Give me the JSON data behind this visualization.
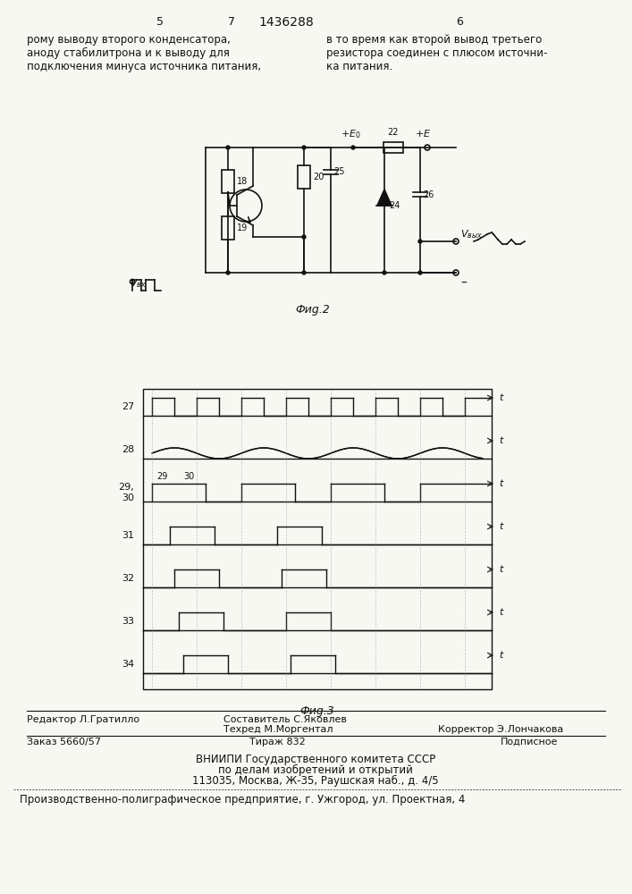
{
  "bg_color": "#f5f5f0",
  "page_color": "#f8f8f3",
  "header_text": "5        7\n         1436288                  6",
  "col1_text": "рому выводу второго конденсатора,\nаноду стабилитрона и к выводу для\nподключения минуса источника питания,",
  "col2_text": "в то время как второй вывод третьего\nрезистора соединен с плюсом источни-\nка питания.",
  "fig2_caption": "Фиg.2",
  "fig3_caption": "Фиg.3",
  "footer_line1_left": "Редактор Л.Гратилло",
  "footer_line1_center": "Составитель С.Яковлев",
  "footer_line2_center": "Техред М.Моргентал",
  "footer_line2_right": "Корректор Э.Лончакова",
  "footer_line3_left": "Заказ 5660/57",
  "footer_line3_center": "Тираж 832",
  "footer_line3_right": "Подписное",
  "footer_vniipi1": "ВНИИПИ Государственного комитета СССР",
  "footer_vniipi2": "по делам изобретений и открытий",
  "footer_vniipi3": "113035, Москва, Ж-35, Раушская наб., д. 4/5",
  "footer_prod": "Производственно-полиграфическое предприятие, г. Ужгород, ул. Проектная, 4"
}
